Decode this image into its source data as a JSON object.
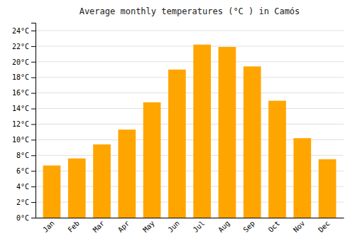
{
  "chart_data": {
    "type": "bar",
    "title": "Average monthly temperatures (°C ) in Camós",
    "categories": [
      "Jan",
      "Feb",
      "Mar",
      "Apr",
      "May",
      "Jun",
      "Jul",
      "Aug",
      "Sep",
      "Oct",
      "Nov",
      "Dec"
    ],
    "values": [
      6.7,
      7.6,
      9.4,
      11.3,
      14.8,
      19.0,
      22.2,
      21.9,
      19.4,
      15.0,
      10.2,
      7.5
    ],
    "color": "#FFA500",
    "ylim": [
      0,
      25
    ],
    "yticks": [
      {
        "value": 0,
        "label": "0°C"
      },
      {
        "value": 2,
        "label": "2°C"
      },
      {
        "value": 4,
        "label": "4°C"
      },
      {
        "value": 6,
        "label": "6°C"
      },
      {
        "value": 8,
        "label": "8°C"
      },
      {
        "value": 10,
        "label": "10°C"
      },
      {
        "value": 12,
        "label": "12°C"
      },
      {
        "value": 14,
        "label": "14°C"
      },
      {
        "value": 16,
        "label": "16°C"
      },
      {
        "value": 18,
        "label": "18°C"
      },
      {
        "value": 20,
        "label": "20°C"
      },
      {
        "value": 22,
        "label": "22°C"
      },
      {
        "value": 24,
        "label": "24°C"
      }
    ],
    "grid": true
  }
}
